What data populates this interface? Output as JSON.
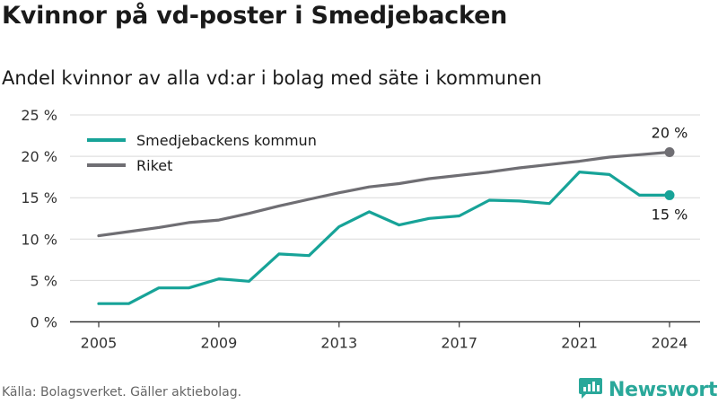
{
  "title": "Kvinnor på vd-poster i Smedjebacken",
  "subtitle": "Andel kvinnor av alla vd:ar i bolag med säte i kommunen",
  "source": "Källa: Bolagsverket. Gäller aktiebolag.",
  "brand": {
    "name": "Newsworthy",
    "icon": "newsworthy-logo-icon"
  },
  "colors": {
    "smedjebacken": "#17a398",
    "riket": "#6f6e73",
    "grid": "#d9d9d9",
    "axis": "#333333"
  },
  "chart_data": {
    "type": "line",
    "title": "Kvinnor på vd-poster i Smedjebacken",
    "subtitle": "Andel kvinnor av alla vd:ar i bolag med säte i kommunen",
    "x": [
      2005,
      2006,
      2007,
      2008,
      2009,
      2010,
      2011,
      2012,
      2013,
      2014,
      2015,
      2016,
      2017,
      2018,
      2019,
      2020,
      2021,
      2022,
      2023,
      2024
    ],
    "xticks": [
      2005,
      2009,
      2013,
      2017,
      2021,
      2024
    ],
    "xlim": [
      2005,
      2024
    ],
    "ylim": [
      0,
      25
    ],
    "yticks": [
      0,
      5,
      10,
      15,
      20,
      25
    ],
    "ytick_labels": [
      "0 %",
      "5 %",
      "10 %",
      "15 %",
      "20 %",
      "25 %"
    ],
    "grid": true,
    "legend_position": "top-left",
    "series": [
      {
        "name": "Smedjebackens kommun",
        "color": "#17a398",
        "end_label": "15 %",
        "values": [
          2.2,
          2.2,
          4.1,
          4.1,
          5.2,
          4.9,
          8.2,
          8.0,
          11.5,
          13.3,
          11.7,
          12.5,
          12.8,
          14.7,
          14.6,
          14.3,
          18.1,
          17.8,
          15.3,
          15.3
        ]
      },
      {
        "name": "Riket",
        "color": "#6f6e73",
        "end_label": "20 %",
        "values": [
          10.4,
          10.9,
          11.4,
          12.0,
          12.3,
          13.1,
          14.0,
          14.8,
          15.6,
          16.3,
          16.7,
          17.3,
          17.7,
          18.1,
          18.6,
          19.0,
          19.4,
          19.9,
          20.2,
          20.5
        ]
      }
    ]
  }
}
